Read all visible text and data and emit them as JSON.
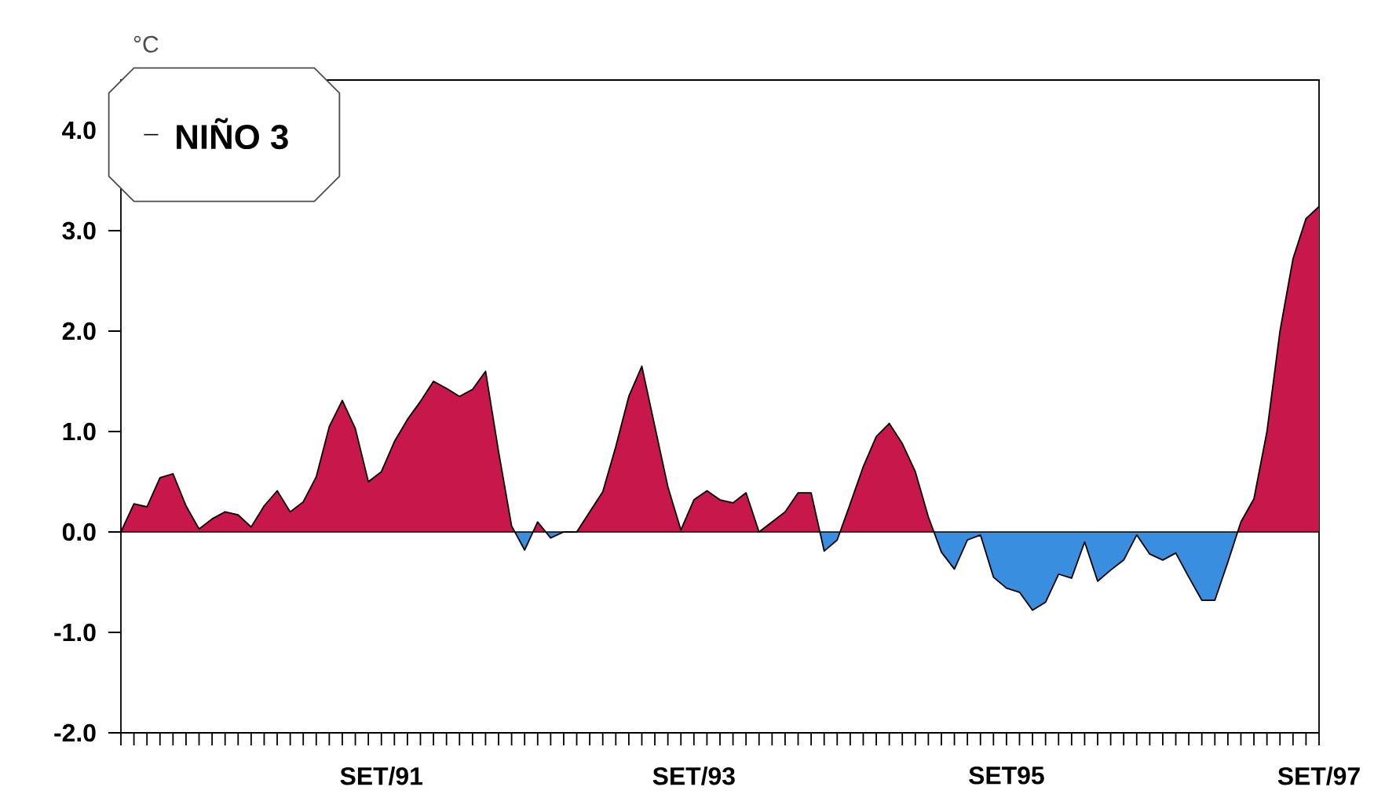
{
  "chart_data": {
    "type": "area",
    "ylabel": "°C",
    "legend": "top left",
    "xlim": [
      "1990-01",
      "1997-09"
    ],
    "ylim": [
      -2,
      4.5
    ],
    "yticks": [
      {
        "value": -2,
        "label": "-2.0"
      },
      {
        "value": -1,
        "label": "-1.0"
      },
      {
        "value": 0,
        "label": "0.0"
      },
      {
        "value": 1,
        "label": "1.0"
      },
      {
        "value": 2,
        "label": "2.0"
      },
      {
        "value": 3,
        "label": "3.0"
      },
      {
        "value": 4,
        "label": "4.0"
      }
    ],
    "xticks": [
      {
        "value": "1990-01",
        "label": null
      },
      {
        "value": "1990-02",
        "label": null
      },
      {
        "value": "1990-03",
        "label": null
      },
      {
        "value": "1990-04",
        "label": null
      },
      {
        "value": "1990-05",
        "label": null
      },
      {
        "value": "1990-06",
        "label": null
      },
      {
        "value": "1990-07",
        "label": null
      },
      {
        "value": "1990-08",
        "label": null
      },
      {
        "value": "1990-09",
        "label": null
      },
      {
        "value": "1990-10",
        "label": null
      },
      {
        "value": "1990-11",
        "label": null
      },
      {
        "value": "1990-12",
        "label": null
      },
      {
        "value": "1991-01",
        "label": null
      },
      {
        "value": "1991-02",
        "label": null
      },
      {
        "value": "1991-03",
        "label": null
      },
      {
        "value": "1991-04",
        "label": null
      },
      {
        "value": "1991-05",
        "label": null
      },
      {
        "value": "1991-06",
        "label": null
      },
      {
        "value": "1991-07",
        "label": null
      },
      {
        "value": "1991-08",
        "label": null
      },
      {
        "value": "1991-09",
        "label": "SET/91"
      },
      {
        "value": "1991-10",
        "label": null
      },
      {
        "value": "1991-11",
        "label": null
      },
      {
        "value": "1991-12",
        "label": null
      },
      {
        "value": "1992-01",
        "label": null
      },
      {
        "value": "1992-02",
        "label": null
      },
      {
        "value": "1992-03",
        "label": null
      },
      {
        "value": "1992-04",
        "label": null
      },
      {
        "value": "1992-05",
        "label": null
      },
      {
        "value": "1992-06",
        "label": null
      },
      {
        "value": "1992-07",
        "label": null
      },
      {
        "value": "1992-08",
        "label": null
      },
      {
        "value": "1992-09",
        "label": null
      },
      {
        "value": "1992-10",
        "label": null
      },
      {
        "value": "1992-11",
        "label": null
      },
      {
        "value": "1992-12",
        "label": null
      },
      {
        "value": "1993-01",
        "label": null
      },
      {
        "value": "1993-02",
        "label": null
      },
      {
        "value": "1993-03",
        "label": null
      },
      {
        "value": "1993-04",
        "label": null
      },
      {
        "value": "1993-05",
        "label": null
      },
      {
        "value": "1993-06",
        "label": null
      },
      {
        "value": "1993-07",
        "label": null
      },
      {
        "value": "1993-08",
        "label": null
      },
      {
        "value": "1993-09",
        "label": "SET/93"
      },
      {
        "value": "1993-10",
        "label": null
      },
      {
        "value": "1993-11",
        "label": null
      },
      {
        "value": "1993-12",
        "label": null
      },
      {
        "value": "1994-01",
        "label": null
      },
      {
        "value": "1994-02",
        "label": null
      },
      {
        "value": "1994-03",
        "label": null
      },
      {
        "value": "1994-04",
        "label": null
      },
      {
        "value": "1994-05",
        "label": null
      },
      {
        "value": "1994-06",
        "label": null
      },
      {
        "value": "1994-07",
        "label": null
      },
      {
        "value": "1994-08",
        "label": null
      },
      {
        "value": "1994-09",
        "label": null
      },
      {
        "value": "1994-10",
        "label": null
      },
      {
        "value": "1994-11",
        "label": null
      },
      {
        "value": "1994-12",
        "label": null
      },
      {
        "value": "1995-01",
        "label": null
      },
      {
        "value": "1995-02",
        "label": null
      },
      {
        "value": "1995-03",
        "label": null
      },
      {
        "value": "1995-04",
        "label": null
      },
      {
        "value": "1995-05",
        "label": null
      },
      {
        "value": "1995-06",
        "label": null
      },
      {
        "value": "1995-07",
        "label": null
      },
      {
        "value": "1995-08",
        "label": null
      },
      {
        "value": "1995-09",
        "label": "SET95"
      },
      {
        "value": "1995-10",
        "label": null
      },
      {
        "value": "1995-11",
        "label": null
      },
      {
        "value": "1995-12",
        "label": null
      },
      {
        "value": "1996-01",
        "label": null
      },
      {
        "value": "1996-02",
        "label": null
      },
      {
        "value": "1996-03",
        "label": null
      },
      {
        "value": "1996-04",
        "label": null
      },
      {
        "value": "1996-05",
        "label": null
      },
      {
        "value": "1996-06",
        "label": null
      },
      {
        "value": "1996-07",
        "label": null
      },
      {
        "value": "1996-08",
        "label": null
      },
      {
        "value": "1996-09",
        "label": null
      },
      {
        "value": "1996-10",
        "label": null
      },
      {
        "value": "1996-11",
        "label": null
      },
      {
        "value": "1996-12",
        "label": null
      },
      {
        "value": "1997-01",
        "label": null
      },
      {
        "value": "1997-02",
        "label": null
      },
      {
        "value": "1997-03",
        "label": null
      },
      {
        "value": "1997-04",
        "label": null
      },
      {
        "value": "1997-05",
        "label": null
      },
      {
        "value": "1997-06",
        "label": null
      },
      {
        "value": "1997-07",
        "label": null
      },
      {
        "value": "1997-08",
        "label": null
      },
      {
        "value": "1997-09",
        "label": "SET/97"
      }
    ],
    "ref_lines": [
      {
        "axis": "y",
        "value": 0,
        "color": "#000000"
      }
    ],
    "x": [
      "1990-01",
      "1990-02",
      "1990-03",
      "1990-04",
      "1990-05",
      "1990-06",
      "1990-07",
      "1990-08",
      "1990-09",
      "1990-10",
      "1990-11",
      "1990-12",
      "1991-01",
      "1991-02",
      "1991-03",
      "1991-04",
      "1991-05",
      "1991-06",
      "1991-07",
      "1991-08",
      "1991-09",
      "1991-10",
      "1991-11",
      "1991-12",
      "1992-01",
      "1992-02",
      "1992-03",
      "1992-04",
      "1992-05",
      "1992-06",
      "1992-07",
      "1992-08",
      "1992-09",
      "1992-10",
      "1992-11",
      "1992-12",
      "1993-01",
      "1993-02",
      "1993-03",
      "1993-04",
      "1993-05",
      "1993-06",
      "1993-07",
      "1993-08",
      "1993-09",
      "1993-10",
      "1993-11",
      "1993-12",
      "1994-01",
      "1994-02",
      "1994-03",
      "1994-04",
      "1994-05",
      "1994-06",
      "1994-07",
      "1994-08",
      "1994-09",
      "1994-10",
      "1994-11",
      "1994-12",
      "1995-01",
      "1995-02",
      "1995-03",
      "1995-04",
      "1995-05",
      "1995-06",
      "1995-07",
      "1995-08",
      "1995-09",
      "1995-10",
      "1995-11",
      "1995-12",
      "1996-01",
      "1996-02",
      "1996-03",
      "1996-04",
      "1996-05",
      "1996-06",
      "1996-07",
      "1996-08",
      "1996-09",
      "1996-10",
      "1996-11",
      "1996-12",
      "1997-01",
      "1997-02",
      "1997-03",
      "1997-04",
      "1997-05",
      "1997-06",
      "1997-07",
      "1997-08",
      "1997-09"
    ],
    "series": [
      {
        "name": "NIÑO 3",
        "color": "#000000",
        "values": [
          0.0,
          0.28,
          0.25,
          0.54,
          0.58,
          0.26,
          0.03,
          0.13,
          0.2,
          0.17,
          0.05,
          0.26,
          0.41,
          0.2,
          0.3,
          0.55,
          1.05,
          1.31,
          1.03,
          0.5,
          0.6,
          0.9,
          1.12,
          1.3,
          1.5,
          1.43,
          1.35,
          1.42,
          1.6,
          0.8,
          0.06,
          -0.18,
          0.1,
          -0.06,
          0.0,
          0.0,
          0.2,
          0.4,
          0.85,
          1.35,
          1.65,
          1.05,
          0.45,
          0.02,
          0.32,
          0.41,
          0.32,
          0.29,
          0.39,
          0.0,
          0.1,
          0.2,
          0.39,
          0.39,
          -0.19,
          -0.08,
          0.28,
          0.65,
          0.95,
          1.08,
          0.88,
          0.6,
          0.15,
          -0.2,
          -0.37,
          -0.08,
          -0.03,
          -0.45,
          -0.56,
          -0.6,
          -0.78,
          -0.7,
          -0.42,
          -0.46,
          -0.1,
          -0.49,
          -0.38,
          -0.28,
          -0.03,
          -0.22,
          -0.28,
          -0.21,
          -0.45,
          -0.68,
          -0.68,
          -0.3,
          0.1,
          0.33,
          1.0,
          2.0,
          2.72,
          3.12,
          3.24
        ],
        "colors": [
          "#c8174a",
          "#c8174a",
          "#c8174a",
          "#c8174a",
          "#c8174a",
          "#c8174a",
          "#c8174a",
          "#c8174a",
          "#c8174a",
          "#c8174a",
          "#c8174a",
          "#c8174a",
          "#c8174a",
          "#c8174a",
          "#c8174a",
          "#c8174a",
          "#c8174a",
          "#c8174a",
          "#c8174a",
          "#c8174a",
          "#c8174a",
          "#c8174a",
          "#c8174a",
          "#c8174a",
          "#c8174a",
          "#c8174a",
          "#c8174a",
          "#c8174a",
          "#c8174a",
          "#c8174a",
          "#c8174a",
          "#3a8ee0",
          "#c8174a",
          "#3a8ee0",
          "#c8174a",
          "#c8174a",
          "#c8174a",
          "#c8174a",
          "#c8174a",
          "#c8174a",
          "#c8174a",
          "#c8174a",
          "#c8174a",
          "#c8174a",
          "#c8174a",
          "#c8174a",
          "#c8174a",
          "#c8174a",
          "#c8174a",
          "#c8174a",
          "#c8174a",
          "#c8174a",
          "#c8174a",
          "#c8174a",
          "#3a8ee0",
          "#3a8ee0",
          "#c8174a",
          "#c8174a",
          "#c8174a",
          "#c8174a",
          "#c8174a",
          "#c8174a",
          "#c8174a",
          "#3a8ee0",
          "#3a8ee0",
          "#3a8ee0",
          "#3a8ee0",
          "#3a8ee0",
          "#3a8ee0",
          "#3a8ee0",
          "#3a8ee0",
          "#3a8ee0",
          "#3a8ee0",
          "#3a8ee0",
          "#3a8ee0",
          "#3a8ee0",
          "#3a8ee0",
          "#3a8ee0",
          "#3a8ee0",
          "#3a8ee0",
          "#3a8ee0",
          "#3a8ee0",
          "#3a8ee0",
          "#3a8ee0",
          "#3a8ee0",
          "#3a8ee0",
          "#c8174a",
          "#c8174a",
          "#c8174a",
          "#c8174a",
          "#c8174a",
          "#c8174a",
          "#c8174a"
        ]
      }
    ]
  }
}
